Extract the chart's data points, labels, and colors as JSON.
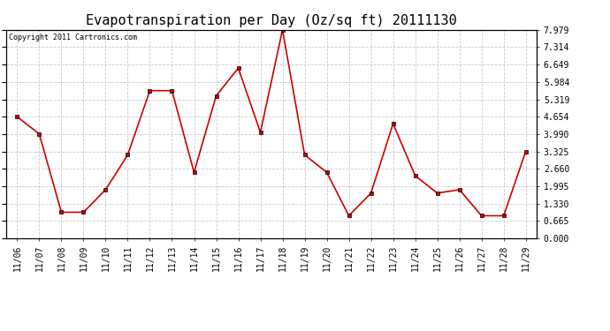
{
  "title": "Evapotranspiration per Day (Oz/sq ft) 20111130",
  "copyright": "Copyright 2011 Cartronics.com",
  "dates": [
    "11/06",
    "11/07",
    "11/08",
    "11/09",
    "11/10",
    "11/11",
    "11/12",
    "11/13",
    "11/14",
    "11/15",
    "11/16",
    "11/17",
    "11/18",
    "11/19",
    "11/20",
    "11/21",
    "11/22",
    "11/23",
    "11/24",
    "11/25",
    "11/26",
    "11/27",
    "11/28",
    "11/29"
  ],
  "values": [
    4.654,
    3.99,
    0.998,
    0.998,
    1.862,
    3.192,
    5.65,
    5.65,
    2.527,
    5.452,
    6.516,
    4.056,
    7.979,
    3.192,
    2.527,
    0.864,
    1.729,
    4.388,
    2.394,
    1.729,
    1.862,
    0.864,
    0.864,
    3.325
  ],
  "ylim": [
    0.0,
    7.979
  ],
  "yticks": [
    0.0,
    0.665,
    1.33,
    1.995,
    2.66,
    3.325,
    3.99,
    4.654,
    5.319,
    5.984,
    6.649,
    7.314,
    7.979
  ],
  "line_color": "#cc0000",
  "marker": "s",
  "marker_size": 2.5,
  "bg_color": "#ffffff",
  "grid_color": "#bbbbbb",
  "title_fontsize": 11,
  "tick_fontsize": 7,
  "copyright_fontsize": 6
}
